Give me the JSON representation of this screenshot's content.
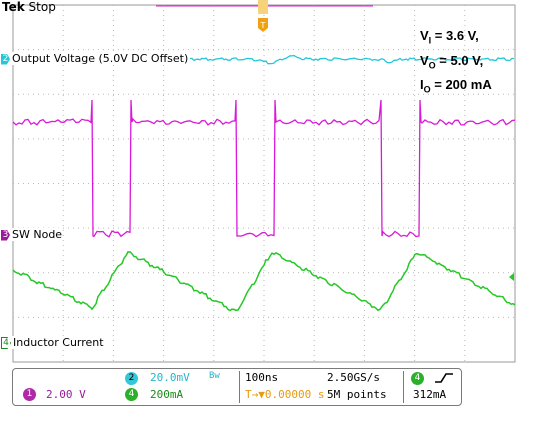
{
  "header": {
    "brand": "Tek",
    "state": "Stop"
  },
  "annotation": {
    "vi_sym": "V",
    "vi_sub": "I",
    "vi_val": " = 3.6 V,",
    "vo_sym": "V",
    "vo_sub": "O",
    "vo_val": " = 5.0 V,",
    "io_sym": "I",
    "io_sub": "O",
    "io_val": " = 200 mA"
  },
  "channels": [
    {
      "id": "2",
      "label": "Output Voltage (5.0V DC Offset)",
      "color": "#22c8d8"
    },
    {
      "id": "3",
      "label": "SW Node",
      "color": "#d81ad8"
    },
    {
      "id": "4",
      "label": "Inductor Current",
      "color": "#26c826"
    }
  ],
  "trigger": {
    "marker": "T",
    "color": "#f0a010"
  },
  "status": {
    "ch1_badge": "1",
    "ch1_scale": "2.00 V",
    "ch2_badge": "2",
    "ch2_scale": "20.0mV",
    "ch4_badge": "4",
    "ch4_scale": "200mA",
    "timebase": "100ns",
    "trigger_pos": "T→▼0.00000 s",
    "sample_rate": "2.50GS/s",
    "record_length": "5M points",
    "trig_badge": "4",
    "trig_level": "312mA"
  },
  "colors": {
    "grid": "#b8b8b8",
    "ch1": "#c61fbe",
    "ch2": "#22c8d8",
    "ch3": "#d81ad8",
    "ch4": "#26c826"
  }
}
